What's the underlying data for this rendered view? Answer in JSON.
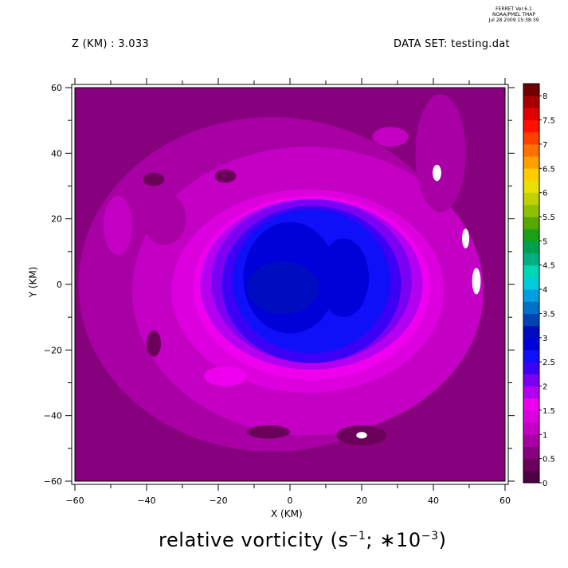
{
  "header": {
    "stamp_lines": [
      "FERRET  Ver.6.1",
      "NOAA/PMEL TMAP",
      "Jul 28 2009 15:38:39"
    ],
    "z_label": "Z (KM) : 3.033",
    "dataset_label": "DATA SET: testing.dat"
  },
  "chart_data": {
    "type": "heatmap",
    "title": "relative vorticity (s-1; *10-3)",
    "title_parts": {
      "main": "relative vorticity (s",
      "exp1": "−1",
      "mid": "; ∗10",
      "exp2": "−3",
      "end": ")"
    },
    "xlabel": "X (KM)",
    "ylabel": "Y (KM)",
    "xlim": [
      -60,
      60
    ],
    "ylim": [
      -60,
      60
    ],
    "x_ticks": [
      -60,
      -40,
      -20,
      0,
      20,
      40,
      60
    ],
    "y_ticks": [
      -60,
      -40,
      -20,
      0,
      20,
      40,
      60
    ],
    "x_tick_labels": [
      "−60",
      "−40",
      "−20",
      "0",
      "20",
      "40",
      "60"
    ],
    "y_tick_labels": [
      "−60",
      "−40",
      "−20",
      "0",
      "20",
      "40",
      "60"
    ],
    "colorbar": {
      "levels": [
        0,
        0.25,
        0.5,
        0.75,
        1,
        1.25,
        1.5,
        1.75,
        2,
        2.25,
        2.5,
        2.75,
        3,
        3.25,
        3.5,
        3.75,
        4,
        4.25,
        4.5,
        4.75,
        5,
        5.25,
        5.5,
        5.75,
        6,
        6.25,
        6.5,
        6.75,
        7,
        7.25,
        7.5,
        7.75,
        8
      ],
      "labels": [
        "0",
        "0.5",
        "1",
        "1.5",
        "2",
        "2.5",
        "3",
        "3.5",
        "4",
        "4.5",
        "5",
        "5.5",
        "6",
        "6.5",
        "7",
        "7.5",
        "8"
      ],
      "colors": [
        "#4d0042",
        "#6a005a",
        "#87007e",
        "#a800a4",
        "#c400c4",
        "#dd00de",
        "#ee00ee",
        "#b400f0",
        "#7c00f2",
        "#3c00f4",
        "#1010f8",
        "#0000d8",
        "#000cc0",
        "#0044b4",
        "#0070c8",
        "#00a0e0",
        "#00ccdc",
        "#00d8b4",
        "#00b080",
        "#00a050",
        "#18a018",
        "#58a800",
        "#90c000",
        "#c0d000",
        "#e8e000",
        "#ffcc00",
        "#ffa000",
        "#ff7000",
        "#ff4000",
        "#ff1000",
        "#e00000",
        "#a80000",
        "#700000"
      ]
    },
    "field_regions": [
      {
        "x": 0,
        "y": 0,
        "rx": 60,
        "ry": 60,
        "v": 0.6,
        "shape": "rect"
      },
      {
        "x": -5,
        "y": 0,
        "rx": 54,
        "ry": 51,
        "v": 0.8
      },
      {
        "x": 5,
        "y": -2,
        "rx": 49,
        "ry": 44,
        "v": 1.0
      },
      {
        "x": 3,
        "y": 0,
        "rx": 44,
        "ry": 37,
        "v": 1.2
      },
      {
        "x": 5,
        "y": -2,
        "rx": 38,
        "ry": 31,
        "v": 1.4
      },
      {
        "x": 6,
        "y": -1,
        "rx": 33,
        "ry": 28,
        "v": 1.6
      },
      {
        "x": 6,
        "y": 0,
        "rx": 31,
        "ry": 26,
        "v": 1.8
      },
      {
        "x": 6,
        "y": 1,
        "rx": 28,
        "ry": 25,
        "v": 2.1
      },
      {
        "x": 6,
        "y": 0,
        "rx": 25,
        "ry": 24,
        "v": 2.3
      },
      {
        "x": 6,
        "y": 1,
        "rx": 22,
        "ry": 22,
        "v": 2.6
      },
      {
        "x": 0,
        "y": 2,
        "rx": 13,
        "ry": 17,
        "v": 2.9
      },
      {
        "x": -2,
        "y": -1,
        "rx": 10,
        "ry": 8,
        "v": 3.2
      },
      {
        "x": 15,
        "y": 2,
        "rx": 7,
        "ry": 12,
        "v": 2.8
      },
      {
        "x": -35,
        "y": 20,
        "rx": 6,
        "ry": 8,
        "v": 0.9
      },
      {
        "x": -48,
        "y": 18,
        "rx": 4,
        "ry": 9,
        "v": 1.0
      },
      {
        "x": -38,
        "y": 32,
        "rx": 3,
        "ry": 2,
        "v": 0.4
      },
      {
        "x": -18,
        "y": 33,
        "rx": 3,
        "ry": 2,
        "v": 0.4
      },
      {
        "x": -38,
        "y": -18,
        "rx": 2,
        "ry": 4,
        "v": 0.4
      },
      {
        "x": -6,
        "y": -45,
        "rx": 6,
        "ry": 2,
        "v": 0.4
      },
      {
        "x": 20,
        "y": -46,
        "rx": 7,
        "ry": 3,
        "v": 0.4
      },
      {
        "x": 42,
        "y": 40,
        "rx": 7,
        "ry": 18,
        "v": 0.8
      },
      {
        "x": 28,
        "y": 45,
        "rx": 5,
        "ry": 3,
        "v": 1.2
      },
      {
        "x": -18,
        "y": -28,
        "rx": 6,
        "ry": 3,
        "v": 1.6
      }
    ],
    "missing_patches": [
      {
        "x": 41,
        "y": 34,
        "rx": 1.2,
        "ry": 2.5
      },
      {
        "x": 49,
        "y": 14,
        "rx": 1,
        "ry": 3
      },
      {
        "x": 52,
        "y": 1,
        "rx": 1.2,
        "ry": 4
      },
      {
        "x": 20,
        "y": -46,
        "rx": 1.5,
        "ry": 1
      }
    ]
  }
}
